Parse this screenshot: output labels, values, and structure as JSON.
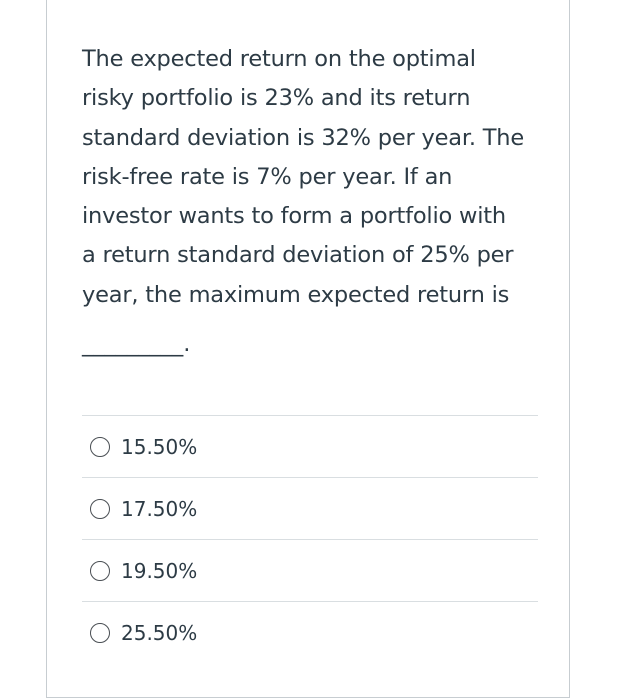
{
  "question": {
    "lines": [
      "The expected return on the optimal",
      "risky portfolio is 23% and its return",
      "standard deviation is 32% per year. The",
      "risk-free rate is 7% per year. If an",
      "investor wants to form a portfolio with",
      "a return standard deviation of 25% per",
      "year, the maximum expected return is"
    ],
    "blank": "_________."
  },
  "answers": [
    {
      "label": "15.50%",
      "selected": false
    },
    {
      "label": "17.50%",
      "selected": false
    },
    {
      "label": "19.50%",
      "selected": false
    },
    {
      "label": "25.50%",
      "selected": false
    }
  ]
}
